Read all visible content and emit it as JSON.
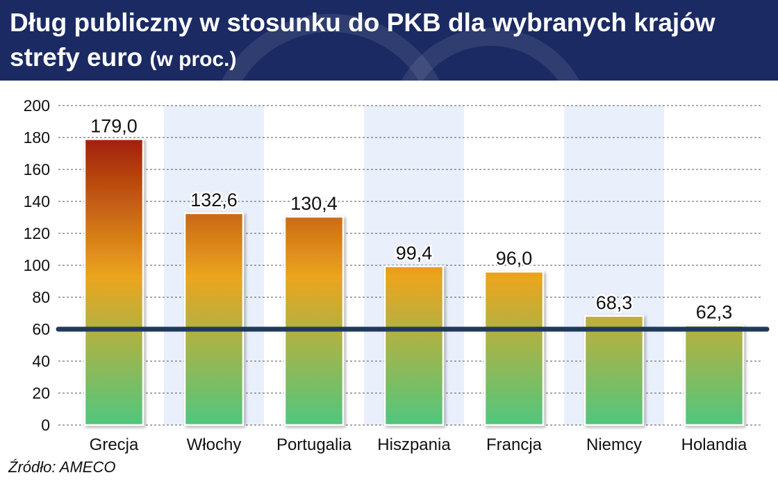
{
  "header": {
    "title": "Dług publiczny w stosunku do PKB dla wybranych krajów strefy euro",
    "unit": "(w proc.)"
  },
  "source": "Źródło: AMECO",
  "colors": {
    "header_bg": "#1b2a63",
    "reference_line": "#1f3a5a",
    "bar_top": "#a3200a",
    "bar_mid": "#eba51e",
    "bar_bottom": "#4fc77f",
    "column_stripe": "#eaf0fb"
  },
  "chart_data": {
    "type": "bar",
    "title": "Dług publiczny w stosunku do PKB dla wybranych krajów strefy euro",
    "subtitle": "(w proc.)",
    "categories": [
      "Grecja",
      "Włochy",
      "Portugalia",
      "Hiszpania",
      "Francja",
      "Niemcy",
      "Holandia"
    ],
    "values": [
      179.0,
      132.6,
      130.4,
      99.4,
      96.0,
      68.3,
      62.3
    ],
    "value_labels": [
      "179,0",
      "132,6",
      "130,4",
      "99,4",
      "96,0",
      "68,3",
      "62,3"
    ],
    "ylim": [
      0,
      200
    ],
    "yticks": [
      0,
      20,
      40,
      60,
      80,
      100,
      120,
      140,
      160,
      180,
      200
    ],
    "grid": true,
    "reference_line": 60
  }
}
